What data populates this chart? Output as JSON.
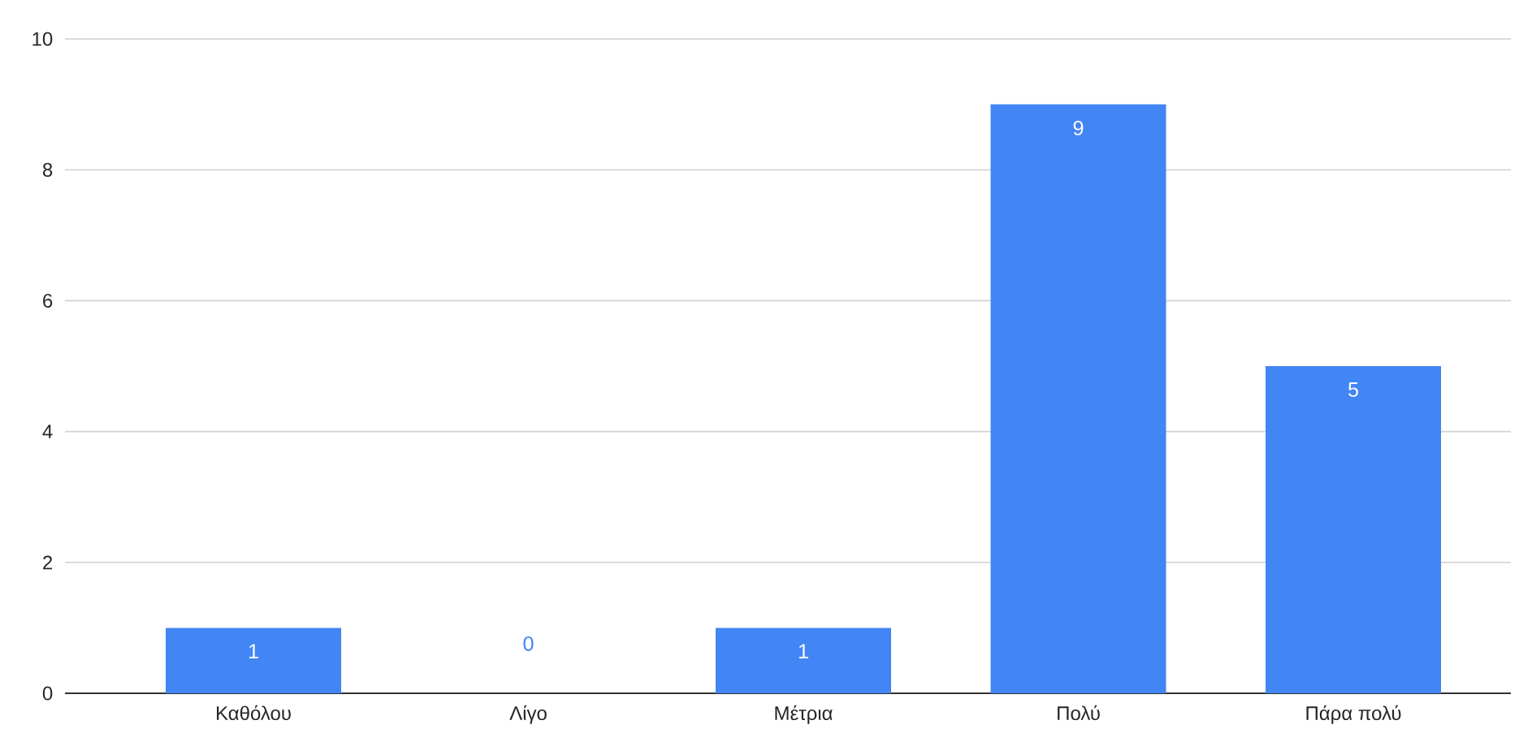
{
  "chart_data": {
    "type": "bar",
    "categories": [
      "Καθόλου",
      "Λίγο",
      "Μέτρια",
      "Πολύ",
      "Πάρα πολύ"
    ],
    "values": [
      1,
      0,
      1,
      9,
      5
    ],
    "color": "#4285f4",
    "ylim": [
      0,
      10
    ],
    "yticks": [
      0,
      2,
      4,
      6,
      8,
      10
    ],
    "grid": "y",
    "data_labels": true
  }
}
